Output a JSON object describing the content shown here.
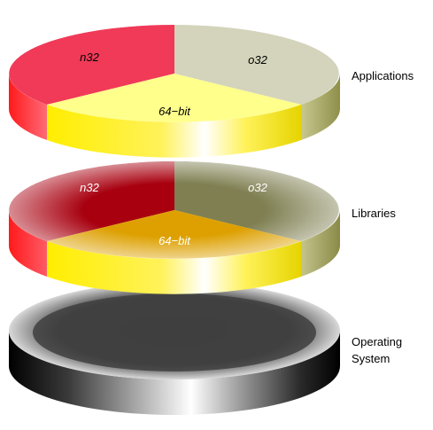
{
  "diagram": {
    "layers": [
      {
        "name": "Applications",
        "label_lines": [
          "Applications"
        ],
        "slices": [
          {
            "label": "n32",
            "color": "#f03a58",
            "side_colors": [
              "#ff0000",
              "#ff5c6e"
            ],
            "label_color": "#000000"
          },
          {
            "label": "o32",
            "color": "#d4d4bc",
            "side_colors": [
              "#a7a75b",
              "#d6d6a6"
            ],
            "label_color": "#000000"
          },
          {
            "label": "64−bit",
            "color": "#ffff8c",
            "side_colors": [
              "#f2e600",
              "#ffffff"
            ],
            "label_color": "#000000"
          }
        ]
      },
      {
        "name": "Libraries",
        "label_lines": [
          "Libraries"
        ],
        "slices": [
          {
            "label": "n32",
            "color": "#a8000f",
            "side_colors": [
              "#ff0000",
              "#ff3b4a"
            ],
            "label_color": "#ffffff"
          },
          {
            "label": "o32",
            "color": "#7f7f52",
            "side_colors": [
              "#9c9c60",
              "#d0d0a0"
            ],
            "label_color": "#ffffff"
          },
          {
            "label": "64−bit",
            "color": "#dda000",
            "side_colors": [
              "#f2e600",
              "#ffffff"
            ],
            "label_color": "#ffffff"
          }
        ]
      },
      {
        "name": "Operating System",
        "label_lines": [
          "Operating",
          "System"
        ],
        "top_color": "#3f3f3f",
        "side_colors": [
          "#000000",
          "#ffffff"
        ]
      }
    ]
  }
}
